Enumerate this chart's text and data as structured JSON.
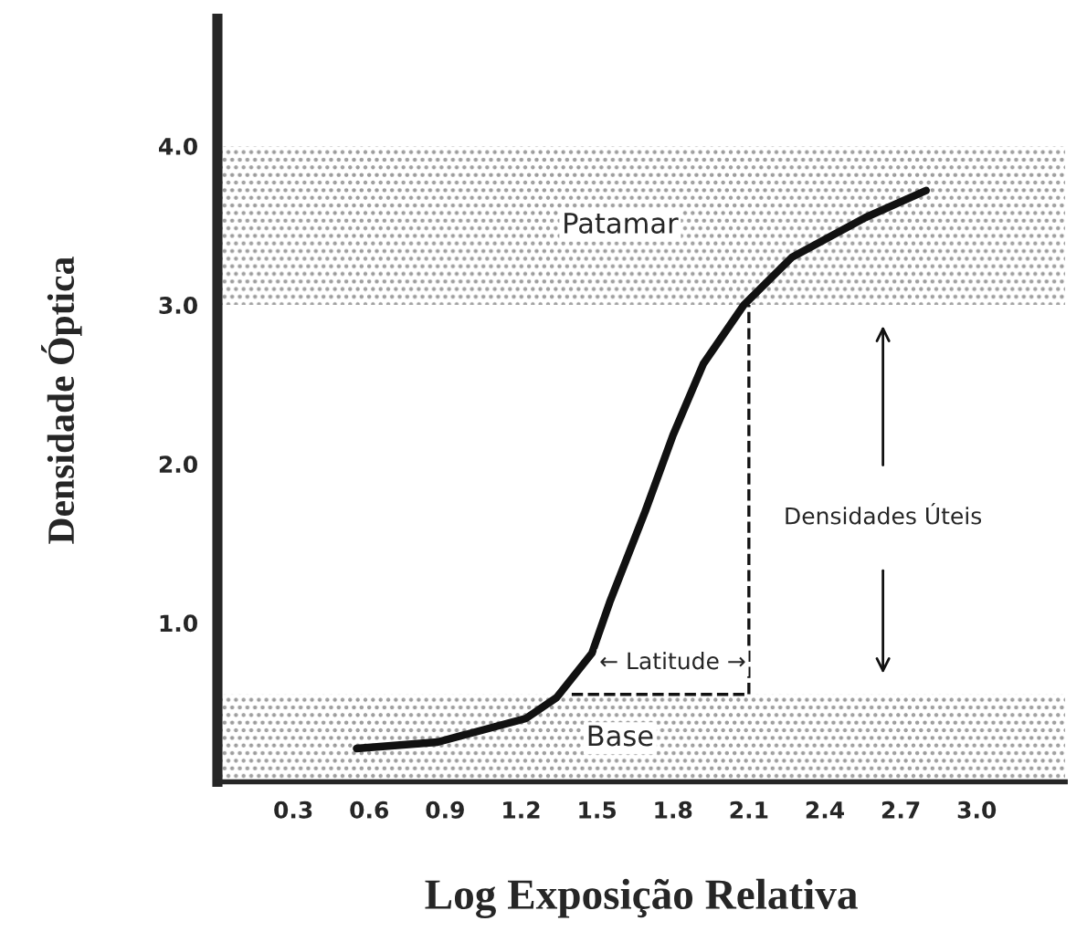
{
  "chart_data": {
    "type": "line",
    "xlabel": "Log Exposição Relativa",
    "ylabel": "Densidade Óptica",
    "series": [
      {
        "color": "#111111",
        "x": [
          0.55,
          0.87,
          1.22,
          1.34,
          1.48,
          1.55,
          1.69,
          1.8,
          1.92,
          2.08,
          2.27,
          2.56,
          2.8
        ],
        "values": [
          0.21,
          0.25,
          0.4,
          0.53,
          0.81,
          1.13,
          1.7,
          2.18,
          2.63,
          3.0,
          3.3,
          3.55,
          3.72
        ]
      },
      {
        "color": "#111111",
        "line_style": "dashed",
        "x": [
          1.4,
          2.1,
          2.1
        ],
        "values": [
          0.55,
          0.55,
          3.0
        ]
      }
    ],
    "bands": [
      {
        "axis": "y",
        "from": 3.0,
        "to": 4.0,
        "label": "Patamar",
        "color": "#9a9a9a"
      },
      {
        "axis": "y",
        "from": 0,
        "to": 0.55,
        "label": "Base",
        "color": "#9a9a9a"
      }
    ],
    "annotations": [
      "← Latitude →",
      "Densidades Úteis"
    ],
    "xlim": [
      0,
      3.35
    ],
    "ylim": [
      0,
      4.8
    ],
    "xticks": [
      0.3,
      0.6,
      0.9,
      1.2,
      1.5,
      1.8,
      2.1,
      2.4,
      2.7,
      {
        "value": 3,
        "label": "3.0"
      }
    ],
    "yticks": [
      {
        "value": 1,
        "label": "1.0"
      },
      {
        "value": 2,
        "label": "2.0"
      },
      {
        "value": 3,
        "label": "3.0"
      },
      {
        "value": 4,
        "label": "4.0"
      }
    ],
    "grid": false,
    "legend": false
  }
}
